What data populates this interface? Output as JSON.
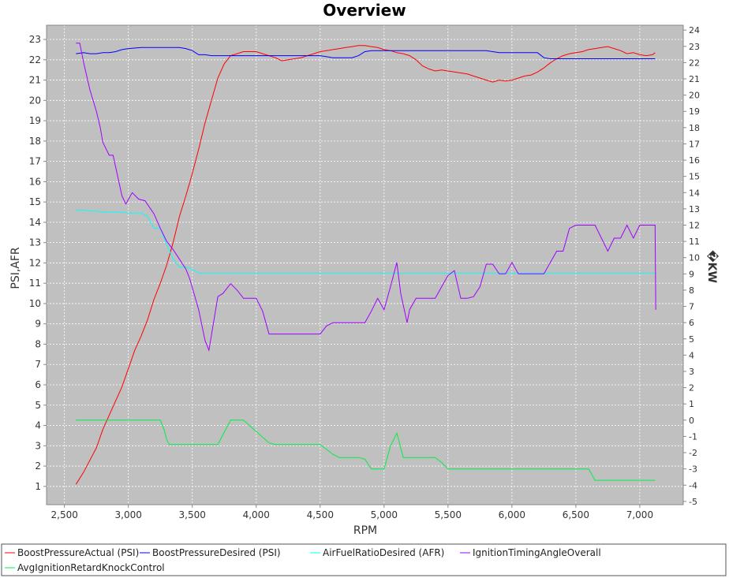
{
  "colors": {
    "plot_background": "#c0c0c0",
    "gridline": "#ffffff",
    "axis": "#888888",
    "boost_actual": "#ff0000",
    "boost_desired": "#0000ff",
    "afr_desired": "#00ffff",
    "ignition_timing": "#a000ff",
    "avg_knock": "#00ee44"
  },
  "chart_data": {
    "type": "line",
    "title": "Overview",
    "xlabel": "RPM",
    "ylabel": "PSI,AFR",
    "y2label": "�KW",
    "xlim": [
      2360,
      7340
    ],
    "ylim": [
      0.1,
      23.7
    ],
    "y2lim": [
      -5.2,
      24.3
    ],
    "x_ticks": [
      2500,
      3000,
      3500,
      4000,
      4500,
      5000,
      5500,
      6000,
      6500,
      7000
    ],
    "x_tick_labels": [
      "2,500",
      "3,000",
      "3,500",
      "4,000",
      "4,500",
      "5,000",
      "5,500",
      "6,000",
      "6,500",
      "7,000"
    ],
    "y_ticks": [
      1,
      2,
      3,
      4,
      5,
      6,
      7,
      8,
      9,
      10,
      11,
      12,
      13,
      14,
      15,
      16,
      17,
      18,
      19,
      20,
      21,
      22,
      23
    ],
    "y2_ticks": [
      -5,
      -4,
      -3,
      -2,
      -1,
      0,
      1,
      2,
      3,
      4,
      5,
      6,
      7,
      8,
      9,
      10,
      11,
      12,
      13,
      14,
      15,
      16,
      17,
      18,
      19,
      20,
      21,
      22,
      23,
      24
    ],
    "grid": true,
    "legend_position": "bottom",
    "series": [
      {
        "name": "BoostPressureActual (PSI)",
        "axis": "left",
        "color_key": "boost_actual",
        "x": [
          2590,
          2650,
          2700,
          2750,
          2800,
          2850,
          2900,
          2950,
          3000,
          3050,
          3100,
          3150,
          3200,
          3250,
          3300,
          3350,
          3400,
          3450,
          3500,
          3550,
          3600,
          3650,
          3700,
          3750,
          3800,
          3850,
          3900,
          3950,
          4000,
          4050,
          4100,
          4150,
          4200,
          4250,
          4300,
          4350,
          4400,
          4450,
          4500,
          4550,
          4600,
          4650,
          4700,
          4750,
          4800,
          4850,
          4900,
          4950,
          5000,
          5050,
          5100,
          5150,
          5200,
          5250,
          5300,
          5350,
          5400,
          5450,
          5500,
          5550,
          5600,
          5650,
          5700,
          5750,
          5800,
          5850,
          5900,
          5950,
          6000,
          6050,
          6100,
          6150,
          6200,
          6250,
          6300,
          6350,
          6400,
          6450,
          6500,
          6550,
          6600,
          6650,
          6700,
          6750,
          6800,
          6850,
          6900,
          6950,
          7000,
          7050,
          7100,
          7120
        ],
        "values": [
          1.1,
          1.7,
          2.3,
          2.9,
          3.8,
          4.5,
          5.2,
          5.9,
          6.8,
          7.7,
          8.4,
          9.2,
          10.2,
          11.0,
          11.9,
          13.0,
          14.3,
          15.3,
          16.4,
          17.6,
          18.9,
          20.0,
          21.1,
          21.8,
          22.2,
          22.3,
          22.4,
          22.4,
          22.4,
          22.3,
          22.2,
          22.1,
          21.95,
          22.0,
          22.05,
          22.1,
          22.2,
          22.3,
          22.4,
          22.45,
          22.5,
          22.55,
          22.6,
          22.65,
          22.7,
          22.7,
          22.65,
          22.6,
          22.5,
          22.45,
          22.35,
          22.3,
          22.2,
          22.0,
          21.7,
          21.55,
          21.45,
          21.5,
          21.45,
          21.4,
          21.35,
          21.3,
          21.2,
          21.1,
          21.0,
          20.9,
          21.0,
          20.95,
          21.0,
          21.1,
          21.2,
          21.25,
          21.4,
          21.6,
          21.85,
          22.05,
          22.2,
          22.3,
          22.35,
          22.4,
          22.5,
          22.55,
          22.6,
          22.65,
          22.55,
          22.45,
          22.3,
          22.35,
          22.25,
          22.2,
          22.25,
          22.35
        ]
      },
      {
        "name": "BoostPressureDesired (PSI)",
        "axis": "left",
        "color_key": "boost_desired",
        "x": [
          2590,
          2650,
          2700,
          2750,
          2800,
          2850,
          2900,
          2950,
          3000,
          3100,
          3200,
          3300,
          3400,
          3450,
          3500,
          3550,
          3600,
          3650,
          3700,
          3800,
          3850,
          3900,
          4100,
          4150,
          4200,
          4400,
          4450,
          4500,
          4550,
          4600,
          4650,
          4700,
          4750,
          4800,
          4850,
          4900,
          5000,
          5100,
          5200,
          5300,
          5400,
          5500,
          5600,
          5700,
          5800,
          5850,
          5900,
          6000,
          6100,
          6150,
          6200,
          6250,
          6300,
          6400,
          6500,
          6600,
          6700,
          6800,
          6900,
          7000,
          7100,
          7120
        ],
        "values": [
          22.3,
          22.35,
          22.3,
          22.3,
          22.35,
          22.35,
          22.4,
          22.5,
          22.55,
          22.6,
          22.6,
          22.6,
          22.6,
          22.55,
          22.45,
          22.25,
          22.25,
          22.2,
          22.2,
          22.2,
          22.2,
          22.2,
          22.2,
          22.2,
          22.2,
          22.2,
          22.2,
          22.2,
          22.15,
          22.1,
          22.1,
          22.1,
          22.1,
          22.2,
          22.4,
          22.45,
          22.45,
          22.45,
          22.45,
          22.45,
          22.45,
          22.45,
          22.45,
          22.45,
          22.45,
          22.4,
          22.35,
          22.35,
          22.35,
          22.35,
          22.35,
          22.1,
          22.05,
          22.05,
          22.05,
          22.05,
          22.05,
          22.05,
          22.05,
          22.05,
          22.05,
          22.05
        ]
      },
      {
        "name": "AirFuelRatioDesired (AFR)",
        "axis": "left",
        "color_key": "afr_desired",
        "x": [
          2590,
          2650,
          2700,
          2750,
          2800,
          2850,
          2900,
          2950,
          3000,
          3050,
          3100,
          3150,
          3200,
          3250,
          3300,
          3350,
          3400,
          3450,
          3500,
          3550,
          3600,
          3700,
          3800,
          4000,
          4500,
          5000,
          5500,
          6000,
          6500,
          7000,
          7120
        ],
        "values": [
          14.6,
          14.6,
          14.55,
          14.55,
          14.5,
          14.5,
          14.5,
          14.5,
          14.45,
          14.45,
          14.45,
          14.3,
          13.7,
          13.7,
          12.9,
          12.2,
          11.8,
          11.8,
          11.7,
          11.5,
          11.5,
          11.5,
          11.5,
          11.5,
          11.5,
          11.5,
          11.5,
          11.5,
          11.5,
          11.5,
          11.5
        ]
      },
      {
        "name": "IgnitionTimingAngleOverall",
        "axis": "right",
        "color_key": "ignition_timing",
        "x": [
          2590,
          2620,
          2650,
          2700,
          2750,
          2780,
          2800,
          2850,
          2880,
          2950,
          2980,
          3030,
          3080,
          3130,
          3200,
          3250,
          3300,
          3350,
          3400,
          3450,
          3480,
          3550,
          3600,
          3630,
          3700,
          3740,
          3800,
          3850,
          3900,
          3950,
          4000,
          4050,
          4100,
          4150,
          4200,
          4300,
          4400,
          4500,
          4550,
          4600,
          4700,
          4800,
          4850,
          4900,
          4950,
          5000,
          5050,
          5100,
          5130,
          5180,
          5200,
          5250,
          5300,
          5350,
          5400,
          5450,
          5500,
          5550,
          5600,
          5650,
          5700,
          5750,
          5800,
          5850,
          5900,
          5950,
          6000,
          6050,
          6100,
          6150,
          6200,
          6250,
          6300,
          6350,
          6400,
          6450,
          6500,
          6550,
          6600,
          6650,
          6700,
          6750,
          6800,
          6850,
          6900,
          6950,
          7000,
          7050,
          7100,
          7120,
          7125
        ],
        "values": [
          23.2,
          23.2,
          22.0,
          20.3,
          19.0,
          18.0,
          17.1,
          16.3,
          16.3,
          13.8,
          13.3,
          14.0,
          13.6,
          13.5,
          12.7,
          11.8,
          11.0,
          10.5,
          9.9,
          9.3,
          8.7,
          6.8,
          4.9,
          4.3,
          7.6,
          7.8,
          8.4,
          8.0,
          7.5,
          7.5,
          7.5,
          6.7,
          5.3,
          5.3,
          5.3,
          5.3,
          5.3,
          5.3,
          5.8,
          6.0,
          6.0,
          6.0,
          6.0,
          6.7,
          7.5,
          6.8,
          8.2,
          9.7,
          7.8,
          6.0,
          6.8,
          7.5,
          7.5,
          7.5,
          7.5,
          8.2,
          8.9,
          9.2,
          7.5,
          7.5,
          7.6,
          8.2,
          9.6,
          9.6,
          9.0,
          9.0,
          9.7,
          9.0,
          9.0,
          9.0,
          9.0,
          9.0,
          9.7,
          10.4,
          10.4,
          11.8,
          12.0,
          12.0,
          12.0,
          12.0,
          11.2,
          10.4,
          11.2,
          11.2,
          12.0,
          11.2,
          12.0,
          12.0,
          12.0,
          12.0,
          6.8
        ]
      },
      {
        "name": "AvgIgnitionRetardKnockControl",
        "axis": "right",
        "color_key": "avg_knock",
        "x": [
          2590,
          3250,
          3280,
          3300,
          3320,
          3400,
          3500,
          3600,
          3700,
          3800,
          3900,
          4000,
          4100,
          4150,
          4200,
          4500,
          4600,
          4650,
          4700,
          4800,
          4850,
          4900,
          4950,
          5000,
          5050,
          5100,
          5150,
          5200,
          5300,
          5400,
          5450,
          5500,
          5600,
          5700,
          6000,
          6300,
          6600,
          6650,
          6700,
          7000,
          7120
        ],
        "values": [
          0.0,
          0.0,
          -0.6,
          -1.2,
          -1.5,
          -1.5,
          -1.5,
          -1.5,
          -1.5,
          0.0,
          0.0,
          -0.7,
          -1.4,
          -1.5,
          -1.5,
          -1.5,
          -2.1,
          -2.3,
          -2.3,
          -2.3,
          -2.4,
          -3.0,
          -3.0,
          -3.0,
          -1.6,
          -0.8,
          -2.3,
          -2.3,
          -2.3,
          -2.3,
          -2.6,
          -3.0,
          -3.0,
          -3.0,
          -3.0,
          -3.0,
          -3.0,
          -3.7,
          -3.7,
          -3.7,
          -3.7
        ]
      }
    ]
  }
}
